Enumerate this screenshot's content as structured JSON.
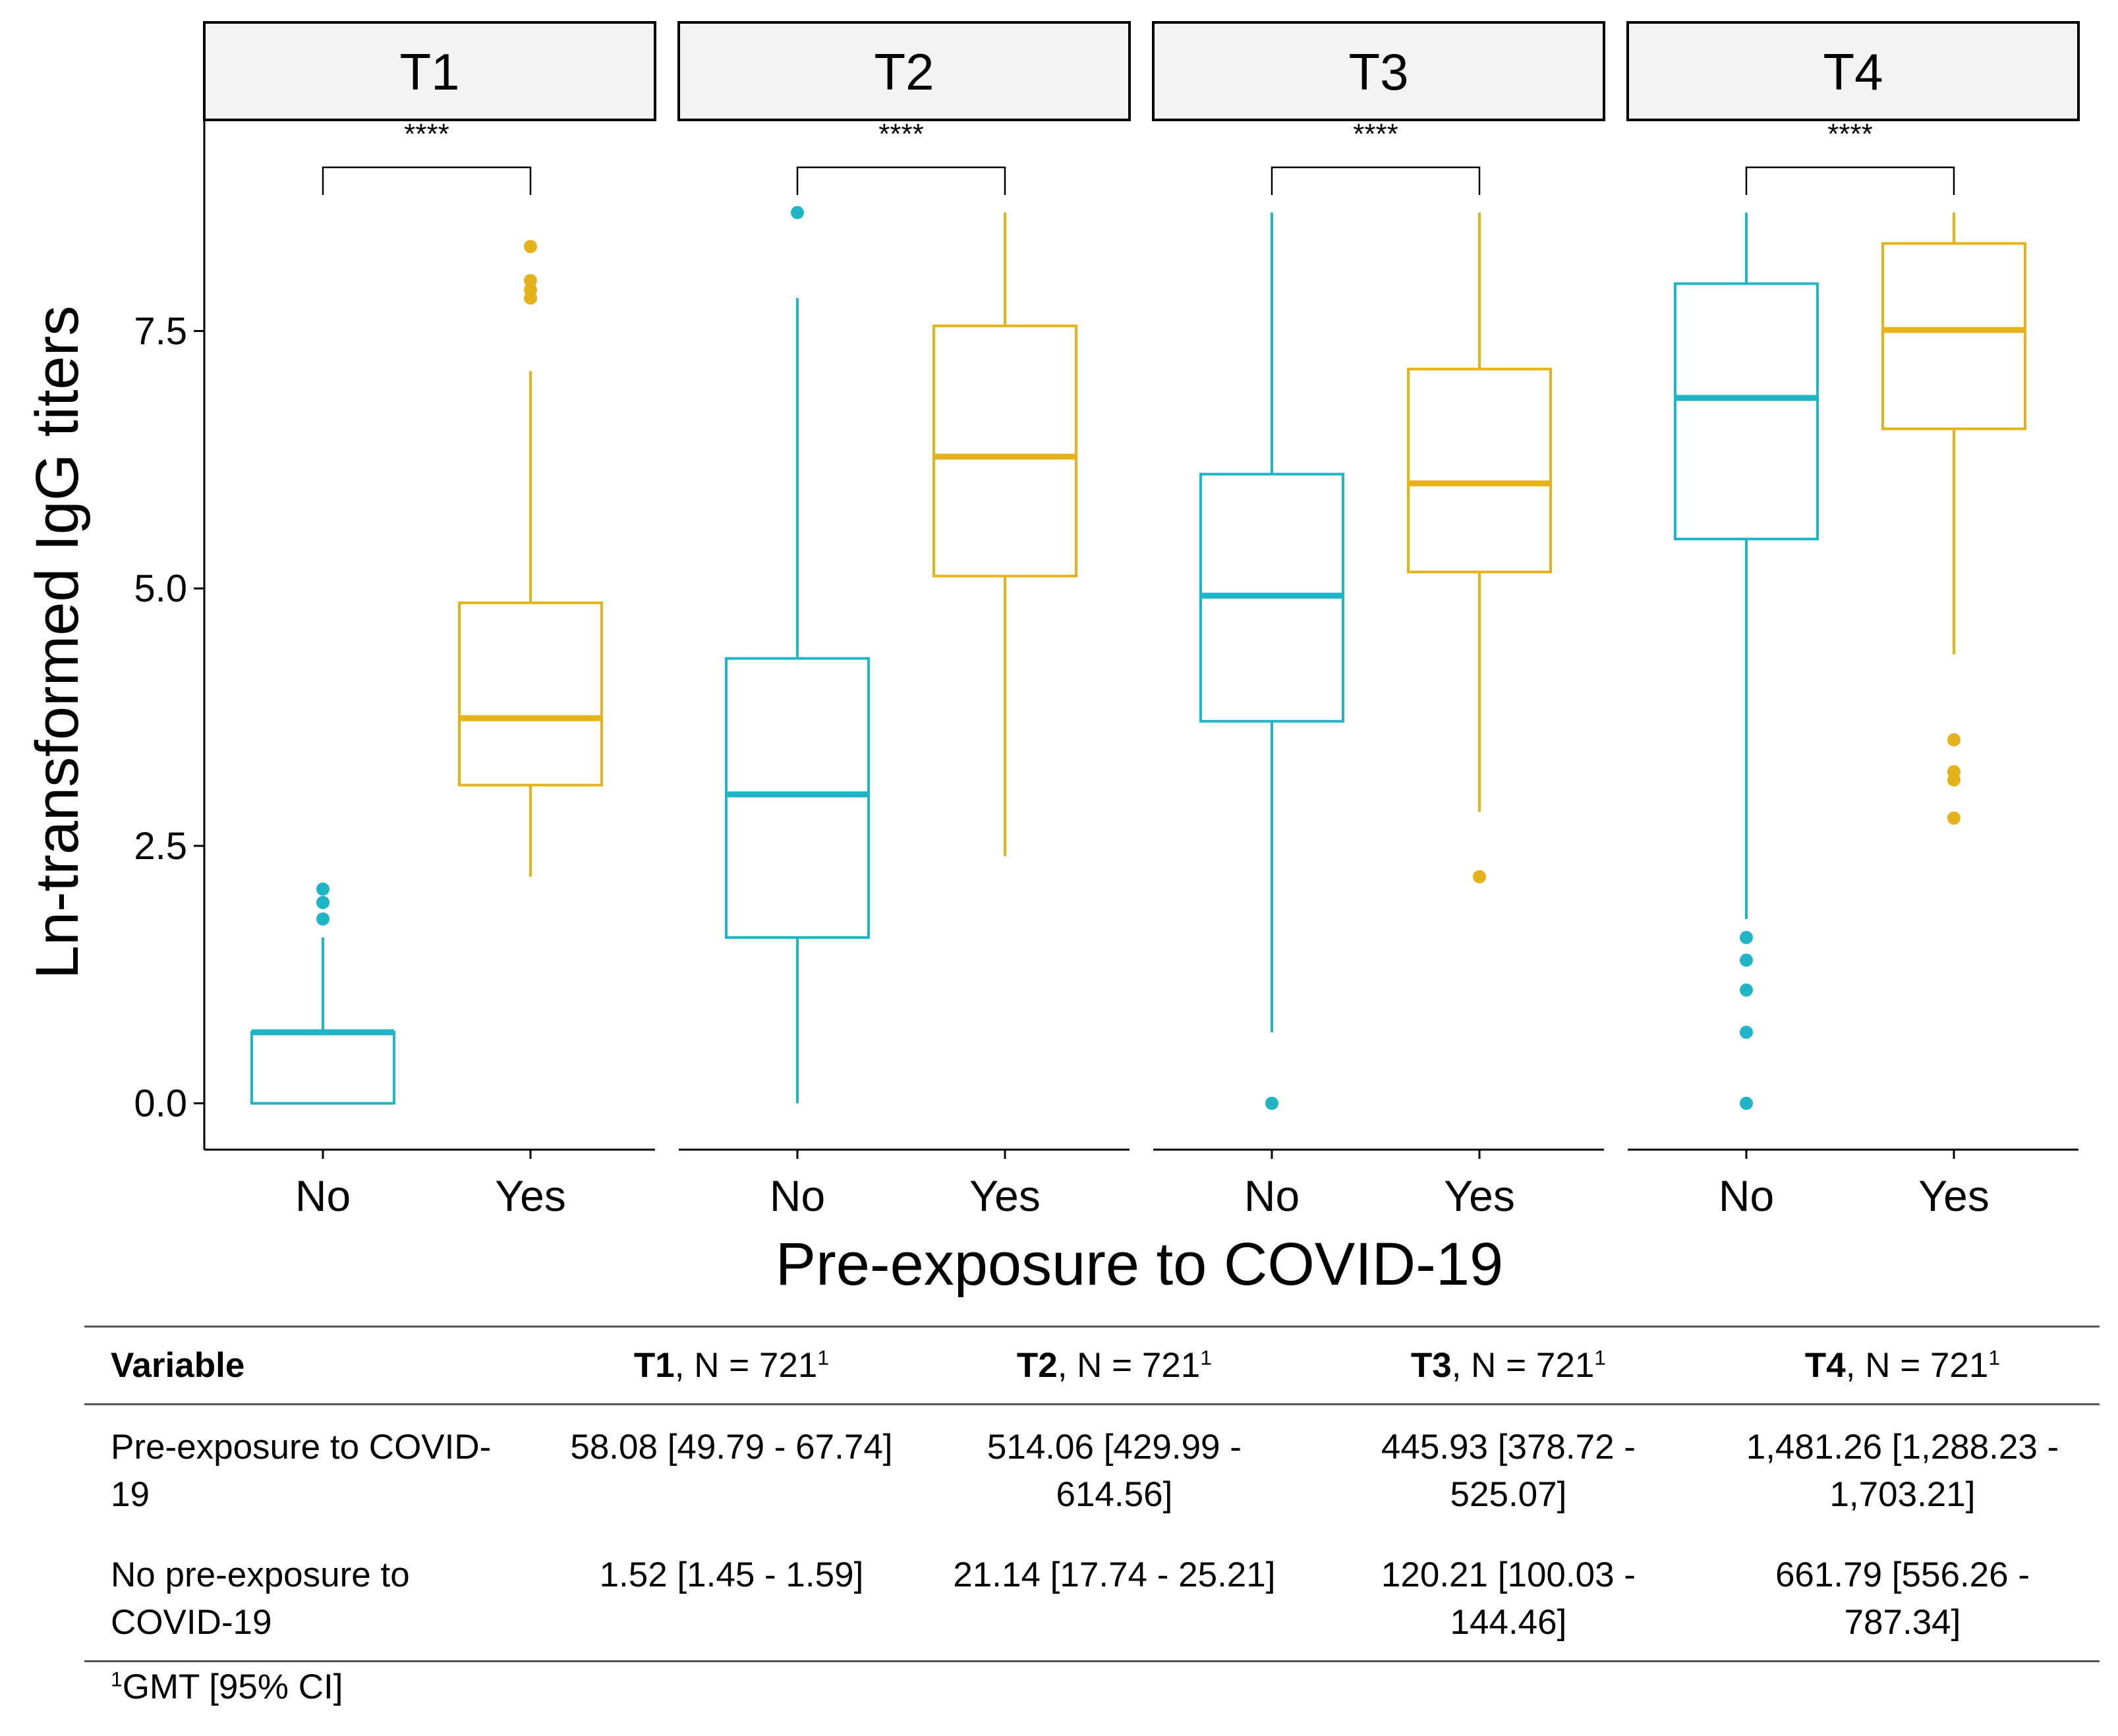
{
  "chart_data": {
    "type": "boxplot",
    "facets": [
      "T1",
      "T2",
      "T3",
      "T4"
    ],
    "categories": [
      "No",
      "Yes"
    ],
    "xlabel": "Pre-exposure to COVID-19",
    "ylabel": "Ln-transformed IgG titers",
    "ylim": [
      -0.45,
      9.55
    ],
    "yticks": [
      0.0,
      2.5,
      5.0,
      7.5
    ],
    "ytick_labels": [
      "0.0",
      "2.5",
      "5.0",
      "7.5"
    ],
    "colors": {
      "No": "#1fb5c6",
      "Yes": "#e6b219"
    },
    "significance": "****",
    "panels": [
      {
        "facet": "T1",
        "boxes": [
          {
            "group": "No",
            "whisker_low": 0.0,
            "q1": 0.0,
            "median": 0.69,
            "q3": 0.69,
            "whisker_high": 1.61,
            "outliers": [
              1.79,
              1.95,
              2.08
            ]
          },
          {
            "group": "Yes",
            "whisker_low": 2.2,
            "q1": 3.09,
            "median": 3.74,
            "q3": 4.86,
            "whisker_high": 7.11,
            "outliers": [
              7.82,
              7.9,
              7.99,
              8.32
            ]
          }
        ]
      },
      {
        "facet": "T2",
        "boxes": [
          {
            "group": "No",
            "whisker_low": 0.0,
            "q1": 1.61,
            "median": 3.0,
            "q3": 4.32,
            "whisker_high": 7.82,
            "outliers": [
              8.65
            ]
          },
          {
            "group": "Yes",
            "whisker_low": 2.4,
            "q1": 5.12,
            "median": 6.28,
            "q3": 7.55,
            "whisker_high": 8.65,
            "outliers": []
          }
        ]
      },
      {
        "facet": "T3",
        "boxes": [
          {
            "group": "No",
            "whisker_low": 0.69,
            "q1": 3.71,
            "median": 4.93,
            "q3": 6.11,
            "whisker_high": 8.65,
            "outliers": [
              0.0
            ]
          },
          {
            "group": "Yes",
            "whisker_low": 2.83,
            "q1": 5.16,
            "median": 6.02,
            "q3": 7.13,
            "whisker_high": 8.65,
            "outliers": [
              2.2
            ]
          }
        ]
      },
      {
        "facet": "T4",
        "boxes": [
          {
            "group": "No",
            "whisker_low": 1.79,
            "q1": 5.48,
            "median": 6.85,
            "q3": 7.96,
            "whisker_high": 8.65,
            "outliers": [
              0.0,
              0.69,
              1.1,
              1.39,
              1.61
            ]
          },
          {
            "group": "Yes",
            "whisker_low": 4.36,
            "q1": 6.55,
            "median": 7.51,
            "q3": 8.35,
            "whisker_high": 8.65,
            "outliers": [
              2.77,
              3.14,
              3.22,
              3.53
            ]
          }
        ]
      }
    ]
  },
  "table": {
    "header": {
      "variable": "Variable",
      "columns": [
        {
          "bold": "T1",
          "rest": ", N = 721",
          "sup": "1"
        },
        {
          "bold": "T2",
          "rest": ", N = 721",
          "sup": "1"
        },
        {
          "bold": "T3",
          "rest": ", N = 721",
          "sup": "1"
        },
        {
          "bold": "T4",
          "rest": ", N = 721",
          "sup": "1"
        }
      ]
    },
    "rows": [
      {
        "label": "Pre-exposure to COVID-19",
        "values": [
          "58.08 [49.79 - 67.74]",
          "514.06 [429.99 - 614.56]",
          "445.93 [378.72 - 525.07]",
          "1,481.26 [1,288.23 - 1,703.21]"
        ]
      },
      {
        "label": "No pre-exposure to COVID-19",
        "values": [
          "1.52 [1.45 - 1.59]",
          "21.14 [17.74 - 25.21]",
          "120.21 [100.03 - 144.46]",
          "661.79 [556.26 - 787.34]"
        ]
      }
    ],
    "footnote": {
      "sup": "1",
      "text": "GMT [95% CI]"
    }
  }
}
